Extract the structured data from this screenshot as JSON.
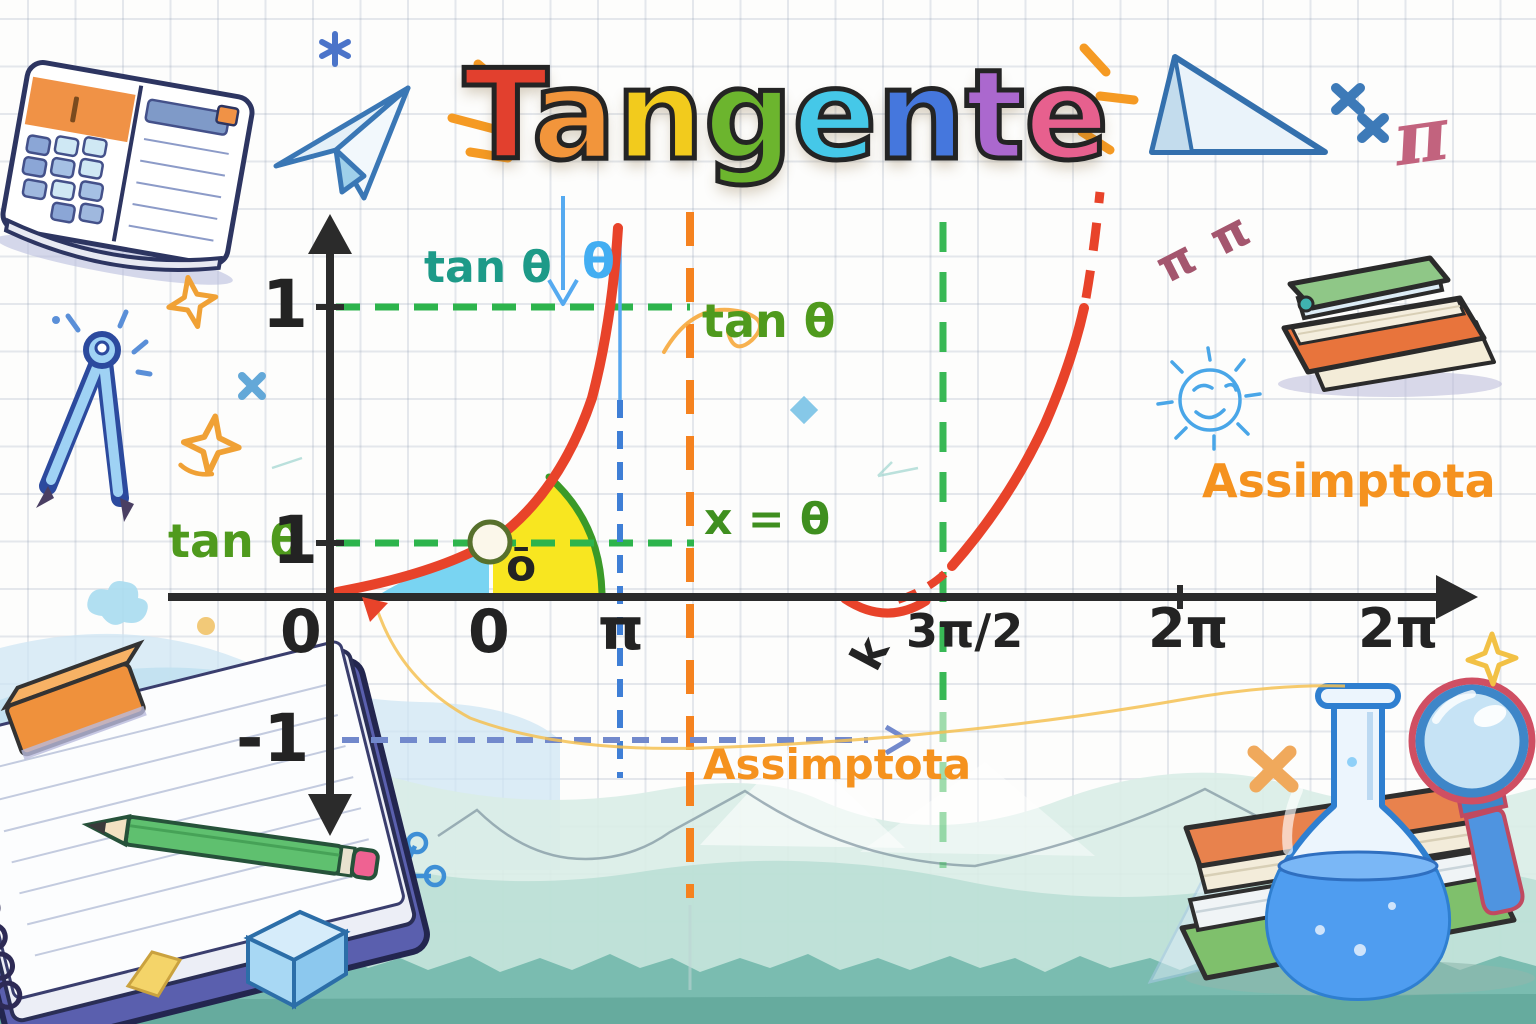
{
  "title": {
    "word": "Tangente",
    "letters": [
      {
        "ch": "T",
        "color": "#e2402e"
      },
      {
        "ch": "a",
        "color": "#f2953b"
      },
      {
        "ch": "n",
        "color": "#f2cb1d"
      },
      {
        "ch": "g",
        "color": "#6cb52e"
      },
      {
        "ch": "e",
        "color": "#45c8e8"
      },
      {
        "ch": "n",
        "color": "#4577dd"
      },
      {
        "ch": "t",
        "color": "#ab68ce"
      },
      {
        "ch": "e",
        "color": "#e7608e"
      }
    ]
  },
  "labels": {
    "y1_top": "1",
    "y1_mid": "1",
    "y_neg1": "-1",
    "x0_origin": "0",
    "x0_theta": "0",
    "x_pi": "π",
    "x_3pi2": "3π/2",
    "x_2pi_a": "2π",
    "x_2pi_b": "2π",
    "k": "k",
    "tan_theta_teal": "tan θ",
    "theta_blue": "θ",
    "tan_theta_right": "tan θ",
    "x_eq_theta": "x = θ",
    "tan_theta_left": "tan θ",
    "o_macron": "ō",
    "asymptote_right": "Assimptota",
    "asymptote_bottom": "Assimptota",
    "pi_pink": "π",
    "pi_doodle": "π π"
  },
  "chart_data": {
    "type": "line",
    "title": "Tangente",
    "function": "y = tan(θ)",
    "xlabel": "",
    "ylabel": "",
    "x_axis_ticks": [
      "0",
      "0",
      "π",
      "3π/2",
      "2π",
      "2π"
    ],
    "y_axis_ticks": [
      "1",
      "1",
      "-1"
    ],
    "grid": true,
    "legend": false,
    "series": [
      {
        "name": "tan θ branch 1",
        "x": [
          0,
          0.55,
          0.85,
          1.0
        ],
        "y": [
          0,
          1,
          2.6,
          4.8
        ],
        "style": "solid red, dashed near asymptote"
      },
      {
        "name": "tan θ branch 2",
        "x": [
          3.6,
          4.3,
          4.9,
          5.2
        ],
        "y": [
          -0.15,
          0.4,
          2.3,
          4.9
        ],
        "style": "solid red, dashed near axis and top"
      }
    ],
    "marked_point": {
      "x_label": "ō",
      "y": 1,
      "marker": "open circle on curve"
    },
    "reference_lines": [
      {
        "type": "horizontal",
        "y": 1,
        "style": "green dashed",
        "label": "tan θ"
      },
      {
        "type": "horizontal",
        "y": 1,
        "style": "green dashed",
        "label": "tan θ (through circled point)"
      },
      {
        "type": "horizontal",
        "y": -1,
        "style": "blue dashed with arrow",
        "label": "Assimptota"
      },
      {
        "type": "vertical",
        "x_label": "π",
        "style": "blue dashed"
      },
      {
        "type": "vertical",
        "x_label": "θ",
        "style": "orange dashed",
        "label": "x = θ"
      },
      {
        "type": "vertical",
        "x_label": "3π/2",
        "style": "green dashed",
        "label": "Assimptota"
      }
    ],
    "shaded_regions": [
      {
        "color": "#79d4f2",
        "description": "blue area under curve left of circled point"
      },
      {
        "color": "#f8e620",
        "description": "yellow area under curve right of circled point, bounded by green arc"
      }
    ]
  },
  "colors": {
    "red_curve": "#e8432a",
    "green_dashed": "#2db44c",
    "orange_dashed": "#f5821f",
    "blue_dashed": "#3f7fd6",
    "blue_horizontal_dashed": "#7289cc",
    "axis": "#2b2b2b",
    "highlight_yellow": "#f8e620",
    "highlight_blue": "#79d4f2",
    "label_teal": "#1d9a88",
    "label_green": "#4f9a1d",
    "label_orange": "#f5921e",
    "hills_teal": "#bcdfd6"
  },
  "decorations": {
    "icons": [
      "calculator-book-icon",
      "paper-plane-icon",
      "compass-icon",
      "triangle-prism-icon",
      "pi-symbol-icon",
      "pi-scribble-icon",
      "sun-doodle-icon",
      "books-stack-icon",
      "notebook-icon",
      "pencil-icon",
      "orange-eraser-icon",
      "blue-eraser-cube-icon",
      "yellow-tile-icon",
      "molecule-doodle-icon",
      "flask-icon",
      "magnifier-icon",
      "sparkle-icon",
      "cross-doodle-icon",
      "cloud-doodle-icon",
      "zigzag-line",
      "triangle-outline-doodle",
      "hills-background",
      "title-rays"
    ]
  }
}
